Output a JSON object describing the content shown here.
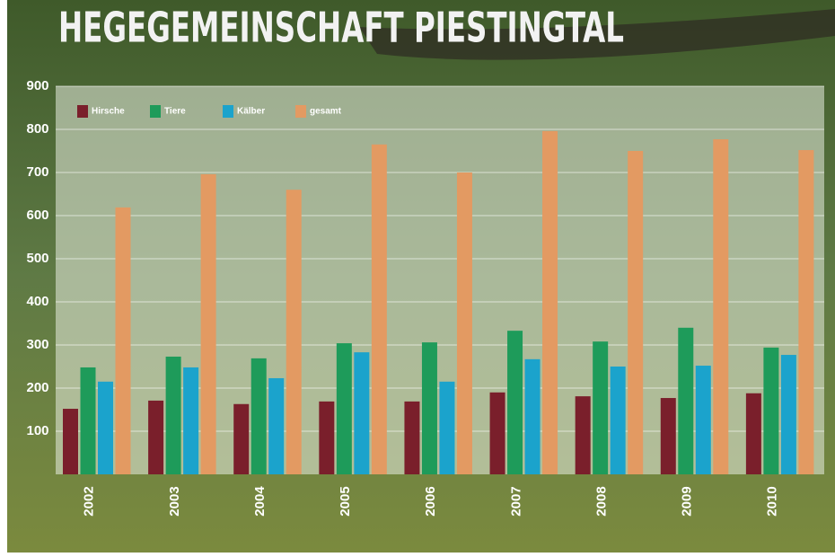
{
  "chart_data": {
    "type": "bar",
    "title": "HEGEGEMEINSCHAFT PIESTINGTAL",
    "categories": [
      "2002",
      "2003",
      "2004",
      "2005",
      "2006",
      "2007",
      "2008",
      "2009",
      "2010"
    ],
    "series": [
      {
        "name": "Hirsche",
        "color": "#7a1f2b",
        "values": [
          152,
          171,
          163,
          169,
          169,
          190,
          181,
          177,
          188
        ]
      },
      {
        "name": "Tiere",
        "color": "#1e9b5a",
        "values": [
          248,
          273,
          269,
          304,
          306,
          333,
          308,
          340,
          294
        ]
      },
      {
        "name": "Kälber",
        "color": "#1ba3cc",
        "values": [
          215,
          248,
          223,
          283,
          215,
          267,
          250,
          252,
          277
        ]
      },
      {
        "name": "gesamt",
        "color": "#e39a62",
        "values": [
          619,
          696,
          660,
          765,
          700,
          796,
          750,
          777,
          752
        ]
      }
    ],
    "ylim": [
      0,
      900
    ],
    "yticks": [
      100,
      200,
      300,
      400,
      500,
      600,
      700,
      800,
      900
    ],
    "grid": true,
    "legend": "top-left"
  }
}
